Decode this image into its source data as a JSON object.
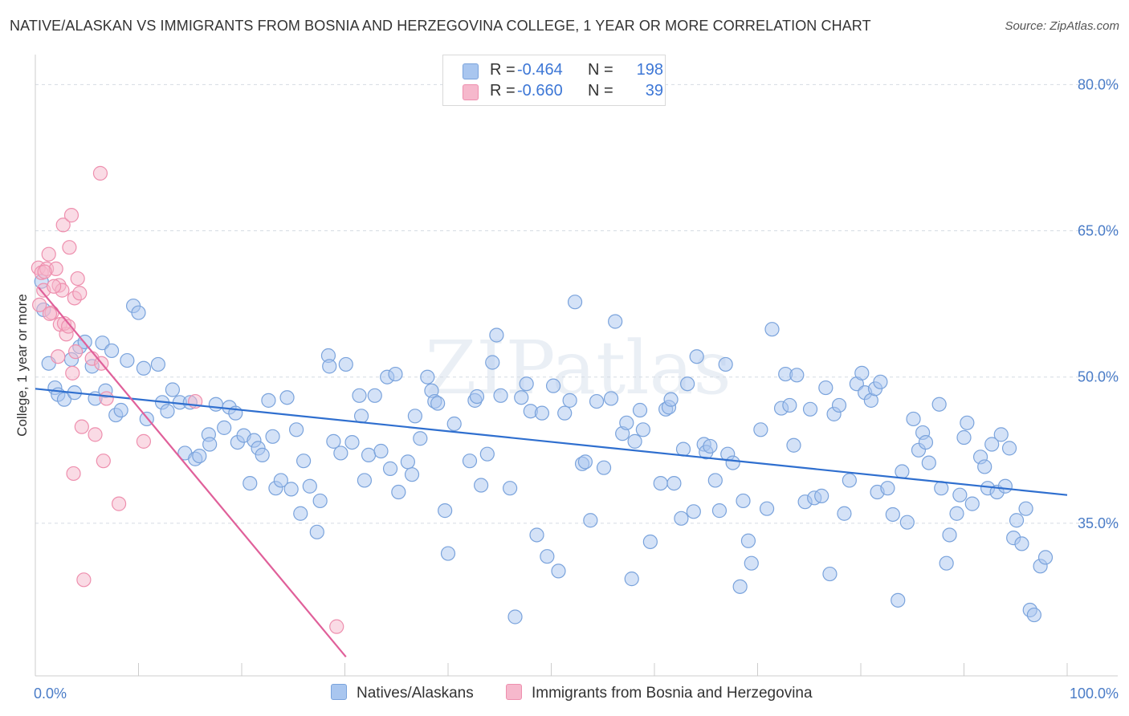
{
  "title": "NATIVE/ALASKAN VS IMMIGRANTS FROM BOSNIA AND HERZEGOVINA COLLEGE, 1 YEAR OR MORE CORRELATION CHART",
  "source": "Source: ZipAtlas.com",
  "watermark": "ZIPatlas",
  "legend": {
    "rows": [
      {
        "r_label": "R =",
        "r_value": "-0.464",
        "n_label": "N =",
        "n_value": "198"
      },
      {
        "r_label": "R =",
        "r_value": "-0.660",
        "n_label": "N =",
        "n_value": "39"
      }
    ]
  },
  "bottom_legend": [
    "Natives/Alaskans",
    "Immigrants from Bosnia and Herzegovina"
  ],
  "colors": {
    "blue_fill": "#a9c6ef",
    "blue_stroke": "#7aa3dc",
    "blue_line": "#2f6fcf",
    "pink_fill": "#f6b8cc",
    "pink_stroke": "#ee8fae",
    "pink_line": "#e0609a",
    "grid": "#d5dbe3",
    "tick_text": "#4a7cc7"
  },
  "chart_data": {
    "type": "scatter",
    "title": "NATIVE/ALASKAN VS IMMIGRANTS FROM BOSNIA AND HERZEGOVINA COLLEGE, 1 YEAR OR MORE CORRELATION CHART",
    "xlabel": "",
    "ylabel": "College, 1 year or more",
    "xlim": [
      0,
      100
    ],
    "ylim": [
      20.5,
      82.5
    ],
    "x_tick_labels": [
      "0.0%",
      "100.0%"
    ],
    "y_ticks": [
      35,
      50,
      65,
      80
    ],
    "y_tick_labels": [
      "35.0%",
      "50.0%",
      "65.0%",
      "80.0%"
    ],
    "grid": true,
    "legend_position": "top-center",
    "series": [
      {
        "name": "Natives/Alaskans",
        "r": -0.464,
        "n": 198,
        "trend": {
          "x": [
            0,
            100
          ],
          "y": [
            48.8,
            37.9
          ]
        },
        "points": [
          [
            0.6,
            59.8
          ],
          [
            0.8,
            56.9
          ],
          [
            1.3,
            51.4
          ],
          [
            1.9,
            48.9
          ],
          [
            2.2,
            48.2
          ],
          [
            2.8,
            47.7
          ],
          [
            3.5,
            51.8
          ],
          [
            3.8,
            48.4
          ],
          [
            4.3,
            53.1
          ],
          [
            4.8,
            53.6
          ],
          [
            5.5,
            51.1
          ],
          [
            5.8,
            47.8
          ],
          [
            6.5,
            53.5
          ],
          [
            6.8,
            48.6
          ],
          [
            7.4,
            52.7
          ],
          [
            7.8,
            46.1
          ],
          [
            8.3,
            46.6
          ],
          [
            8.9,
            51.7
          ],
          [
            9.5,
            57.3
          ],
          [
            10.0,
            56.6
          ],
          [
            10.5,
            50.9
          ],
          [
            10.8,
            45.7
          ],
          [
            11.9,
            51.3
          ],
          [
            12.3,
            47.4
          ],
          [
            12.8,
            46.5
          ],
          [
            13.3,
            48.7
          ],
          [
            14.0,
            47.4
          ],
          [
            14.5,
            42.2
          ],
          [
            15.0,
            47.4
          ],
          [
            15.5,
            41.6
          ],
          [
            15.9,
            41.9
          ],
          [
            16.8,
            44.1
          ],
          [
            16.9,
            43.1
          ],
          [
            17.5,
            47.2
          ],
          [
            18.3,
            44.8
          ],
          [
            18.8,
            46.9
          ],
          [
            19.4,
            46.3
          ],
          [
            19.6,
            43.3
          ],
          [
            20.2,
            44.0
          ],
          [
            20.8,
            39.1
          ],
          [
            21.2,
            43.5
          ],
          [
            21.6,
            42.7
          ],
          [
            22.0,
            42.0
          ],
          [
            22.6,
            47.6
          ],
          [
            23.0,
            43.9
          ],
          [
            23.3,
            38.6
          ],
          [
            23.8,
            39.4
          ],
          [
            24.4,
            47.9
          ],
          [
            24.8,
            38.5
          ],
          [
            25.3,
            44.6
          ],
          [
            25.7,
            36.0
          ],
          [
            26.0,
            41.4
          ],
          [
            26.6,
            38.8
          ],
          [
            27.3,
            34.1
          ],
          [
            27.6,
            37.3
          ],
          [
            28.4,
            52.2
          ],
          [
            28.5,
            51.1
          ],
          [
            28.9,
            43.4
          ],
          [
            29.6,
            42.2
          ],
          [
            30.1,
            51.3
          ],
          [
            30.7,
            43.3
          ],
          [
            31.4,
            48.1
          ],
          [
            31.6,
            46.0
          ],
          [
            31.9,
            39.4
          ],
          [
            32.3,
            42.0
          ],
          [
            32.9,
            48.1
          ],
          [
            33.5,
            42.4
          ],
          [
            34.1,
            50.0
          ],
          [
            34.4,
            40.6
          ],
          [
            34.9,
            50.3
          ],
          [
            35.2,
            38.2
          ],
          [
            36.1,
            41.3
          ],
          [
            36.5,
            40.0
          ],
          [
            36.8,
            46.0
          ],
          [
            37.3,
            43.7
          ],
          [
            38.0,
            50.0
          ],
          [
            38.4,
            48.6
          ],
          [
            38.7,
            47.5
          ],
          [
            39.0,
            47.3
          ],
          [
            39.7,
            36.3
          ],
          [
            40.0,
            31.9
          ],
          [
            40.6,
            45.2
          ],
          [
            42.1,
            41.4
          ],
          [
            42.6,
            47.6
          ],
          [
            42.8,
            48.0
          ],
          [
            43.2,
            38.9
          ],
          [
            43.8,
            42.1
          ],
          [
            44.3,
            51.5
          ],
          [
            44.7,
            54.3
          ],
          [
            45.1,
            48.1
          ],
          [
            46.0,
            38.6
          ],
          [
            46.5,
            25.4
          ],
          [
            47.1,
            47.9
          ],
          [
            47.6,
            49.3
          ],
          [
            48.0,
            46.5
          ],
          [
            48.6,
            33.8
          ],
          [
            49.1,
            46.3
          ],
          [
            49.6,
            31.6
          ],
          [
            50.2,
            49.1
          ],
          [
            50.7,
            30.1
          ],
          [
            51.3,
            46.3
          ],
          [
            51.8,
            47.6
          ],
          [
            52.3,
            57.7
          ],
          [
            53.0,
            41.1
          ],
          [
            53.3,
            41.3
          ],
          [
            53.8,
            35.3
          ],
          [
            54.4,
            47.5
          ],
          [
            55.1,
            40.7
          ],
          [
            55.8,
            47.8
          ],
          [
            56.2,
            55.7
          ],
          [
            56.9,
            44.2
          ],
          [
            57.3,
            45.3
          ],
          [
            57.8,
            29.3
          ],
          [
            58.1,
            43.4
          ],
          [
            58.6,
            46.6
          ],
          [
            58.9,
            44.6
          ],
          [
            59.6,
            33.1
          ],
          [
            60.6,
            39.1
          ],
          [
            61.1,
            46.7
          ],
          [
            61.4,
            46.9
          ],
          [
            61.6,
            47.7
          ],
          [
            61.9,
            39.1
          ],
          [
            62.6,
            35.5
          ],
          [
            62.8,
            42.6
          ],
          [
            63.2,
            49.3
          ],
          [
            63.8,
            36.2
          ],
          [
            64.1,
            52.1
          ],
          [
            64.8,
            43.1
          ],
          [
            65.0,
            42.3
          ],
          [
            65.4,
            42.9
          ],
          [
            65.9,
            39.4
          ],
          [
            66.3,
            36.3
          ],
          [
            66.9,
            51.3
          ],
          [
            67.1,
            42.1
          ],
          [
            67.6,
            41.2
          ],
          [
            68.3,
            28.5
          ],
          [
            68.6,
            37.3
          ],
          [
            69.1,
            33.2
          ],
          [
            69.4,
            30.9
          ],
          [
            70.3,
            44.6
          ],
          [
            70.9,
            36.5
          ],
          [
            71.4,
            54.9
          ],
          [
            72.3,
            46.8
          ],
          [
            72.7,
            50.3
          ],
          [
            73.1,
            47.1
          ],
          [
            73.5,
            43.0
          ],
          [
            73.8,
            50.2
          ],
          [
            74.6,
            37.2
          ],
          [
            75.1,
            46.7
          ],
          [
            75.5,
            37.6
          ],
          [
            76.2,
            37.8
          ],
          [
            76.6,
            48.9
          ],
          [
            77.0,
            29.8
          ],
          [
            77.4,
            46.2
          ],
          [
            77.9,
            47.1
          ],
          [
            78.4,
            36.0
          ],
          [
            78.9,
            39.4
          ],
          [
            79.6,
            49.3
          ],
          [
            80.1,
            50.4
          ],
          [
            80.4,
            48.4
          ],
          [
            81.0,
            47.6
          ],
          [
            81.4,
            48.8
          ],
          [
            81.6,
            38.2
          ],
          [
            81.9,
            49.5
          ],
          [
            82.6,
            38.6
          ],
          [
            83.1,
            35.9
          ],
          [
            83.6,
            27.1
          ],
          [
            84.0,
            40.3
          ],
          [
            84.5,
            35.1
          ],
          [
            85.1,
            45.7
          ],
          [
            85.6,
            42.5
          ],
          [
            86.0,
            44.3
          ],
          [
            86.3,
            43.3
          ],
          [
            86.6,
            41.2
          ],
          [
            87.6,
            47.2
          ],
          [
            87.8,
            38.6
          ],
          [
            88.3,
            30.9
          ],
          [
            88.6,
            33.8
          ],
          [
            89.3,
            36.0
          ],
          [
            89.6,
            37.9
          ],
          [
            90.0,
            43.8
          ],
          [
            90.3,
            45.3
          ],
          [
            90.8,
            37.0
          ],
          [
            91.6,
            41.8
          ],
          [
            92.0,
            40.8
          ],
          [
            92.3,
            38.6
          ],
          [
            92.7,
            43.1
          ],
          [
            93.2,
            38.2
          ],
          [
            93.6,
            44.1
          ],
          [
            94.0,
            38.8
          ],
          [
            94.4,
            42.7
          ],
          [
            94.8,
            33.5
          ],
          [
            95.1,
            35.3
          ],
          [
            95.6,
            32.9
          ],
          [
            96.0,
            36.5
          ],
          [
            96.4,
            26.1
          ],
          [
            96.8,
            25.6
          ],
          [
            97.4,
            30.6
          ],
          [
            97.9,
            31.5
          ]
        ]
      },
      {
        "name": "Immigrants from Bosnia and Herzegovina",
        "r": -0.66,
        "n": 39,
        "trend": {
          "x": [
            0.3,
            30.1
          ],
          "y": [
            59.2,
            21.3
          ]
        },
        "points": [
          [
            0.3,
            61.2
          ],
          [
            0.6,
            60.7
          ],
          [
            0.8,
            58.9
          ],
          [
            1.1,
            61.1
          ],
          [
            1.3,
            62.6
          ],
          [
            1.6,
            56.6
          ],
          [
            2.0,
            61.1
          ],
          [
            2.2,
            52.1
          ],
          [
            2.3,
            59.4
          ],
          [
            2.4,
            55.4
          ],
          [
            2.6,
            58.9
          ],
          [
            2.7,
            65.6
          ],
          [
            3.0,
            54.4
          ],
          [
            3.3,
            63.3
          ],
          [
            3.5,
            66.6
          ],
          [
            3.6,
            50.4
          ],
          [
            3.8,
            58.1
          ],
          [
            3.9,
            52.6
          ],
          [
            4.1,
            60.1
          ],
          [
            4.3,
            58.6
          ],
          [
            4.5,
            44.9
          ],
          [
            5.5,
            51.9
          ],
          [
            5.8,
            44.1
          ],
          [
            6.4,
            51.4
          ],
          [
            6.6,
            41.4
          ],
          [
            6.9,
            47.8
          ],
          [
            3.7,
            40.1
          ],
          [
            4.7,
            29.2
          ],
          [
            6.3,
            70.9
          ],
          [
            8.1,
            37.0
          ],
          [
            10.5,
            43.4
          ],
          [
            15.5,
            47.5
          ],
          [
            0.4,
            57.4
          ],
          [
            0.9,
            60.8
          ],
          [
            1.8,
            59.3
          ],
          [
            2.8,
            55.5
          ],
          [
            3.2,
            55.2
          ],
          [
            1.4,
            56.5
          ],
          [
            29.2,
            24.4
          ]
        ]
      }
    ]
  }
}
